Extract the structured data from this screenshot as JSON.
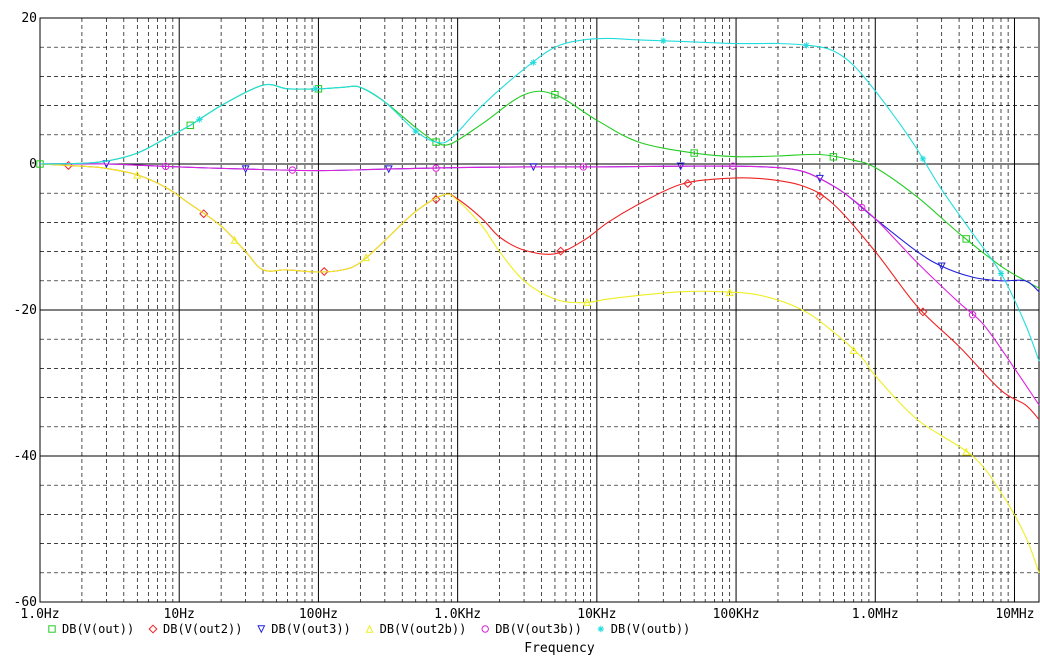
{
  "chart_data": {
    "type": "line",
    "xscale": "log",
    "xlim": [
      1,
      15000000
    ],
    "ylim": [
      -60,
      20
    ],
    "xlabel": "Frequency",
    "grid": true,
    "legend_position": "bottom",
    "x_ticks": [
      {
        "value": 1,
        "label": "1.0Hz"
      },
      {
        "value": 10,
        "label": "10Hz"
      },
      {
        "value": 100,
        "label": "100Hz"
      },
      {
        "value": 1000,
        "label": "1.0KHz"
      },
      {
        "value": 10000,
        "label": "10KHz"
      },
      {
        "value": 100000,
        "label": "100KHz"
      },
      {
        "value": 1000000,
        "label": "1.0MHz"
      },
      {
        "value": 10000000,
        "label": "10MHz"
      }
    ],
    "y_ticks": [
      {
        "value": 20,
        "label": "20"
      },
      {
        "value": 0,
        "label": "0"
      },
      {
        "value": -20,
        "label": "-20"
      },
      {
        "value": -40,
        "label": "-40"
      },
      {
        "value": -60,
        "label": "-60"
      }
    ],
    "series": [
      {
        "name": "DB(V(out))",
        "color": "#22cc22",
        "marker": "square",
        "x": [
          1,
          2,
          3,
          5,
          8,
          12,
          20,
          40,
          60,
          100,
          150,
          200,
          300,
          500,
          700,
          900,
          1500,
          3000,
          5000,
          10000,
          20000,
          50000,
          100000,
          200000,
          400000,
          700000,
          1000000,
          2000000,
          4000000,
          8000000,
          12000000,
          15000000
        ],
        "y": [
          0,
          0.1,
          0.4,
          1.5,
          3.5,
          5.3,
          8,
          10.8,
          10.3,
          10.3,
          10.5,
          10.5,
          8.5,
          5,
          3,
          2.8,
          5.5,
          9.5,
          9.5,
          6,
          3,
          1.5,
          1,
          1.1,
          1.3,
          0.5,
          -0.5,
          -4.5,
          -9.5,
          -14,
          -16,
          -17
        ]
      },
      {
        "name": "DB(V(out2))",
        "color": "#ee2222",
        "marker": "diamond",
        "x": [
          1,
          2,
          3,
          5,
          8,
          12,
          20,
          30,
          40,
          60,
          100,
          150,
          200,
          300,
          500,
          800,
          1000,
          1500,
          2000,
          3000,
          5000,
          8000,
          12000,
          20000,
          40000,
          80000,
          150000,
          300000,
          500000,
          1000000,
          2000000,
          4000000,
          8000000,
          12000000,
          15000000
        ],
        "y": [
          0,
          -0.3,
          -0.6,
          -1.5,
          -3.2,
          -5.5,
          -8.5,
          -12,
          -14.5,
          -14.5,
          -14.8,
          -14.5,
          -13.5,
          -10.5,
          -6.5,
          -4.2,
          -4.8,
          -7.5,
          -10,
          -11.8,
          -12.3,
          -10.5,
          -8,
          -5.5,
          -2.8,
          -2,
          -2,
          -3,
          -5.5,
          -12,
          -19.5,
          -25,
          -31,
          -33,
          -35
        ]
      },
      {
        "name": "DB(V(out3))",
        "color": "#2222dd",
        "marker": "triangle",
        "x": [
          1,
          3,
          10,
          30,
          100,
          300,
          1000,
          3000,
          10000,
          40000,
          100000,
          200000,
          300000,
          400000,
          600000,
          1000000,
          2000000,
          3000000,
          5000000,
          8000000,
          12000000,
          15000000
        ],
        "y": [
          0,
          0,
          -0.4,
          -0.7,
          -0.9,
          -0.7,
          -0.5,
          -0.4,
          -0.4,
          -0.3,
          -0.3,
          -0.5,
          -1,
          -2,
          -4,
          -7.5,
          -12,
          -14,
          -15.5,
          -16,
          -16,
          -17.5
        ]
      },
      {
        "name": "DB(V(out2b))",
        "color": "#eeee22",
        "marker": "triangle-up",
        "x": [
          1,
          2,
          3,
          5,
          8,
          12,
          20,
          30,
          40,
          60,
          100,
          150,
          200,
          300,
          500,
          800,
          1000,
          1500,
          2000,
          3000,
          5000,
          8000,
          12000,
          20000,
          40000,
          80000,
          150000,
          300000,
          500000,
          800000,
          1000000,
          2000000,
          5000000,
          8000000,
          12000000,
          15000000
        ],
        "y": [
          0,
          -0.3,
          -0.6,
          -1.5,
          -3.2,
          -5.5,
          -8.5,
          -12,
          -14.5,
          -14.5,
          -14.8,
          -14.5,
          -13.5,
          -10.5,
          -6.5,
          -4.2,
          -5,
          -8.5,
          -12,
          -16,
          -18.5,
          -19,
          -18.5,
          -18,
          -17.5,
          -17.5,
          -18,
          -20,
          -23,
          -26.5,
          -29,
          -35,
          -40,
          -45,
          -51,
          -56
        ]
      },
      {
        "name": "DB(V(out3b))",
        "color": "#dd22dd",
        "marker": "circle",
        "x": [
          1,
          3,
          10,
          30,
          100,
          300,
          1000,
          3000,
          10000,
          40000,
          100000,
          200000,
          300000,
          400000,
          600000,
          1000000,
          2000000,
          4000000,
          6000000,
          10000000,
          15000000
        ],
        "y": [
          0,
          0,
          -0.4,
          -0.7,
          -0.9,
          -0.7,
          -0.5,
          -0.4,
          -0.4,
          -0.3,
          -0.3,
          -0.5,
          -1,
          -2,
          -4,
          -7.5,
          -13.5,
          -19,
          -22,
          -28,
          -33
        ]
      },
      {
        "name": "DB(V(outb))",
        "color": "#22dddd",
        "marker": "star",
        "x": [
          1,
          2,
          3,
          5,
          8,
          12,
          20,
          40,
          60,
          100,
          150,
          200,
          300,
          500,
          700,
          900,
          1500,
          3000,
          5000,
          8000,
          12000,
          20000,
          40000,
          100000,
          200000,
          350000,
          500000,
          700000,
          1000000,
          1500000,
          2000000,
          3000000,
          5000000,
          8000000,
          12000000,
          15000000
        ],
        "y": [
          0,
          0.1,
          0.4,
          1.5,
          3.5,
          5.3,
          8,
          10.8,
          10.3,
          10.3,
          10.5,
          10.5,
          8.5,
          4.5,
          3,
          3.5,
          8,
          13,
          16,
          17,
          17.2,
          17,
          16.8,
          16.5,
          16.5,
          16.2,
          15.5,
          13.5,
          10,
          5.5,
          2,
          -3.5,
          -9.5,
          -15,
          -22,
          -27
        ]
      }
    ]
  }
}
